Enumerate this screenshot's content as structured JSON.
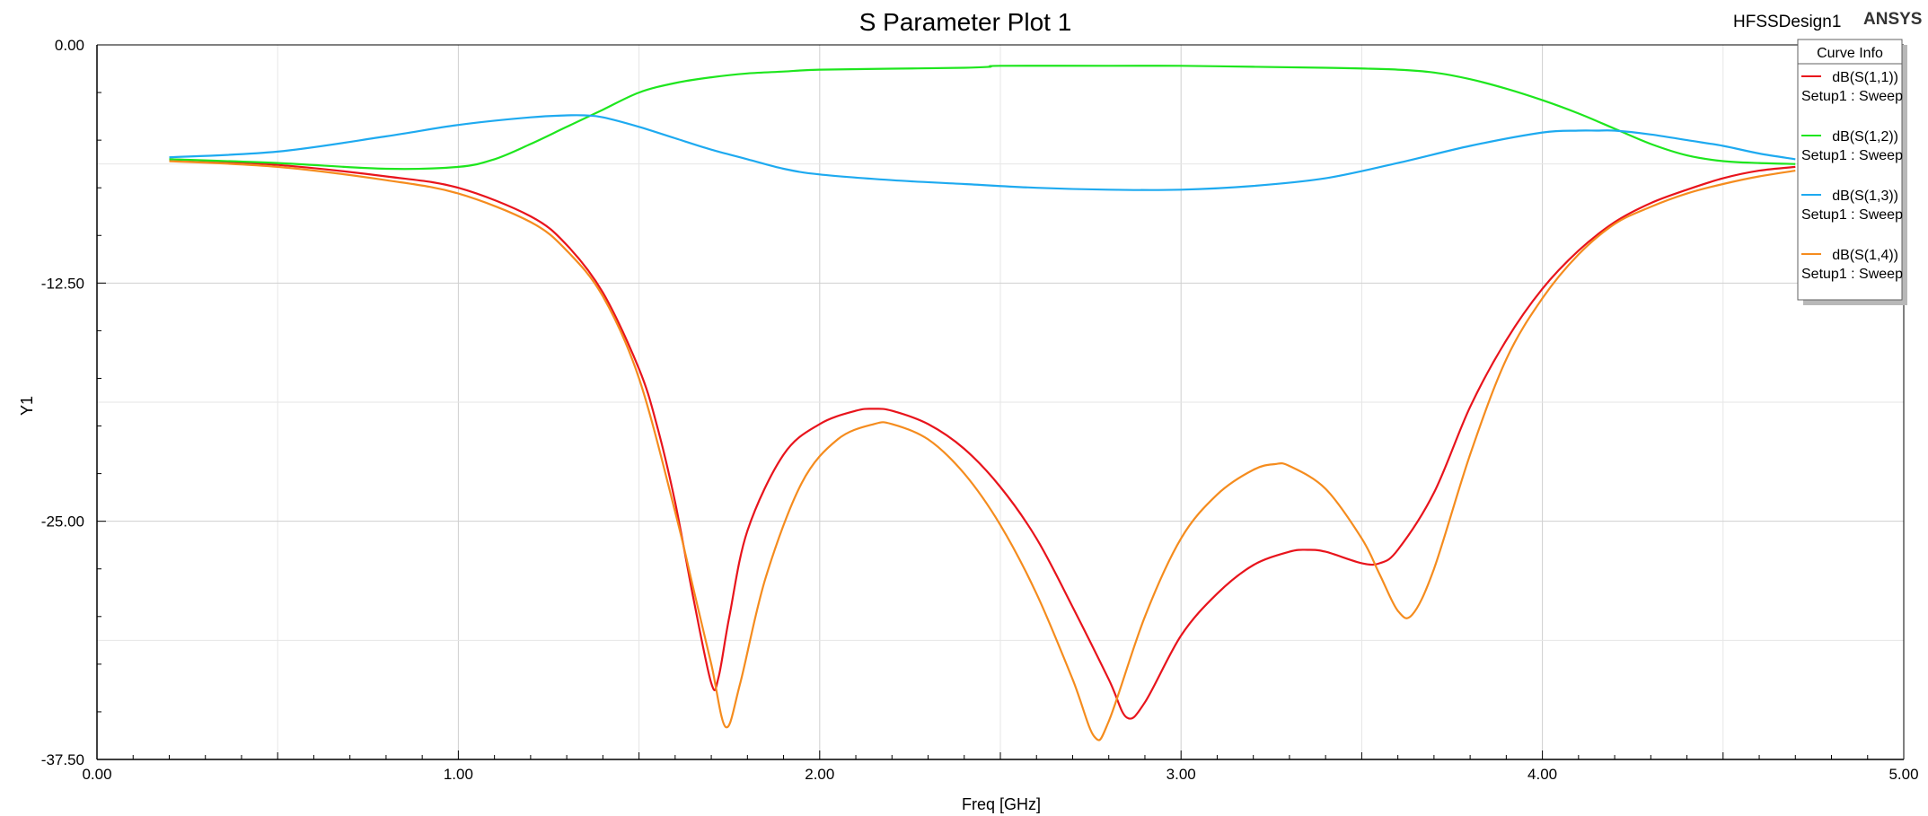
{
  "header": {
    "title": "S Parameter Plot 1",
    "design_name": "HFSSDesign1",
    "brand": "ANSYS"
  },
  "legend": {
    "title": "Curve Info",
    "placement": "top-right"
  },
  "chart_data": {
    "type": "line",
    "title": "S Parameter Plot 1",
    "xlabel": "Freq [GHz]",
    "ylabel": "Y1",
    "xlim": [
      0,
      5
    ],
    "ylim": [
      -37.5,
      0
    ],
    "x_ticks": [
      "0.00",
      "1.00",
      "2.00",
      "3.00",
      "4.00",
      "5.00"
    ],
    "y_ticks": [
      "0.00",
      "-12.50",
      "-25.00",
      "-37.50"
    ],
    "y_tick_values": [
      0,
      -12.5,
      -25,
      -37.5
    ],
    "grid": true,
    "series": [
      {
        "name": "dB(S(1,1))",
        "sweep": "Setup1 : Sweep",
        "color": "#e8141c",
        "x": [
          0.2,
          0.5,
          0.8,
          1.0,
          1.2,
          1.3,
          1.4,
          1.5,
          1.55,
          1.6,
          1.65,
          1.7,
          1.72,
          1.75,
          1.8,
          1.9,
          2.0,
          2.1,
          2.15,
          2.2,
          2.3,
          2.4,
          2.5,
          2.6,
          2.7,
          2.8,
          2.85,
          2.9,
          3.0,
          3.1,
          3.2,
          3.3,
          3.35,
          3.4,
          3.5,
          3.55,
          3.6,
          3.7,
          3.8,
          3.9,
          4.0,
          4.1,
          4.2,
          4.3,
          4.4,
          4.5,
          4.6,
          4.7
        ],
        "y": [
          -6.0,
          -6.3,
          -6.9,
          -7.5,
          -9.0,
          -10.5,
          -13.0,
          -17.0,
          -20.0,
          -24.0,
          -29.0,
          -33.5,
          -33.2,
          -30.0,
          -25.5,
          -21.5,
          -19.9,
          -19.2,
          -19.1,
          -19.2,
          -19.9,
          -21.2,
          -23.2,
          -25.9,
          -29.5,
          -33.3,
          -35.3,
          -34.5,
          -31.0,
          -28.8,
          -27.3,
          -26.6,
          -26.5,
          -26.6,
          -27.2,
          -27.2,
          -26.5,
          -23.5,
          -19.0,
          -15.5,
          -12.8,
          -10.8,
          -9.3,
          -8.3,
          -7.6,
          -7.0,
          -6.6,
          -6.4
        ]
      },
      {
        "name": "dB(S(1,2))",
        "sweep": "Setup1 : Sweep",
        "color": "#1ee61e",
        "x": [
          0.2,
          0.5,
          0.8,
          1.0,
          1.1,
          1.2,
          1.3,
          1.4,
          1.5,
          1.6,
          1.7,
          1.8,
          1.9,
          2.0,
          2.2,
          2.4,
          2.47,
          2.5,
          2.8,
          3.0,
          3.2,
          3.4,
          3.6,
          3.7,
          3.8,
          3.9,
          4.0,
          4.1,
          4.2,
          4.3,
          4.4,
          4.5,
          4.6,
          4.7
        ],
        "y": [
          -6.0,
          -6.2,
          -6.5,
          -6.4,
          -6.0,
          -5.2,
          -4.3,
          -3.4,
          -2.5,
          -2.0,
          -1.7,
          -1.5,
          -1.4,
          -1.3,
          -1.25,
          -1.2,
          -1.15,
          -1.1,
          -1.1,
          -1.1,
          -1.15,
          -1.2,
          -1.3,
          -1.45,
          -1.8,
          -2.3,
          -2.9,
          -3.6,
          -4.4,
          -5.2,
          -5.8,
          -6.1,
          -6.2,
          -6.25
        ]
      },
      {
        "name": "dB(S(1,3))",
        "sweep": "Setup1 : Sweep",
        "color": "#1eaaf0",
        "x": [
          0.2,
          0.5,
          0.8,
          1.0,
          1.2,
          1.3,
          1.35,
          1.4,
          1.5,
          1.6,
          1.7,
          1.8,
          1.9,
          2.0,
          2.2,
          2.4,
          2.6,
          2.8,
          3.0,
          3.2,
          3.4,
          3.6,
          3.8,
          4.0,
          4.1,
          4.15,
          4.2,
          4.3,
          4.4,
          4.5,
          4.6,
          4.7
        ],
        "y": [
          -5.9,
          -5.6,
          -4.8,
          -4.2,
          -3.8,
          -3.7,
          -3.7,
          -3.8,
          -4.3,
          -4.9,
          -5.5,
          -6.0,
          -6.5,
          -6.8,
          -7.1,
          -7.3,
          -7.5,
          -7.6,
          -7.6,
          -7.4,
          -7.0,
          -6.2,
          -5.3,
          -4.6,
          -4.5,
          -4.5,
          -4.5,
          -4.7,
          -5.0,
          -5.3,
          -5.7,
          -6.0
        ]
      },
      {
        "name": "dB(S(1,4))",
        "sweep": "Setup1 : Sweep",
        "color": "#f58c1e",
        "x": [
          0.2,
          0.5,
          0.8,
          1.0,
          1.2,
          1.3,
          1.4,
          1.5,
          1.6,
          1.65,
          1.7,
          1.74,
          1.78,
          1.85,
          1.95,
          2.05,
          2.15,
          2.2,
          2.3,
          2.4,
          2.5,
          2.6,
          2.7,
          2.76,
          2.8,
          2.9,
          3.0,
          3.1,
          3.2,
          3.26,
          3.3,
          3.4,
          3.5,
          3.55,
          3.6,
          3.64,
          3.7,
          3.8,
          3.9,
          4.0,
          4.1,
          4.2,
          4.3,
          4.4,
          4.5,
          4.6,
          4.7
        ],
        "y": [
          -6.1,
          -6.4,
          -7.1,
          -7.8,
          -9.3,
          -10.8,
          -13.2,
          -17.5,
          -24.5,
          -28.5,
          -32.5,
          -35.8,
          -33.5,
          -28.0,
          -23.0,
          -20.7,
          -19.9,
          -19.9,
          -20.7,
          -22.5,
          -25.2,
          -28.8,
          -33.3,
          -36.3,
          -35.5,
          -30.0,
          -25.9,
          -23.6,
          -22.3,
          -22.0,
          -22.1,
          -23.3,
          -25.9,
          -27.8,
          -29.7,
          -29.9,
          -27.5,
          -21.5,
          -16.5,
          -13.3,
          -11.0,
          -9.4,
          -8.5,
          -7.8,
          -7.3,
          -6.9,
          -6.6
        ]
      }
    ]
  }
}
